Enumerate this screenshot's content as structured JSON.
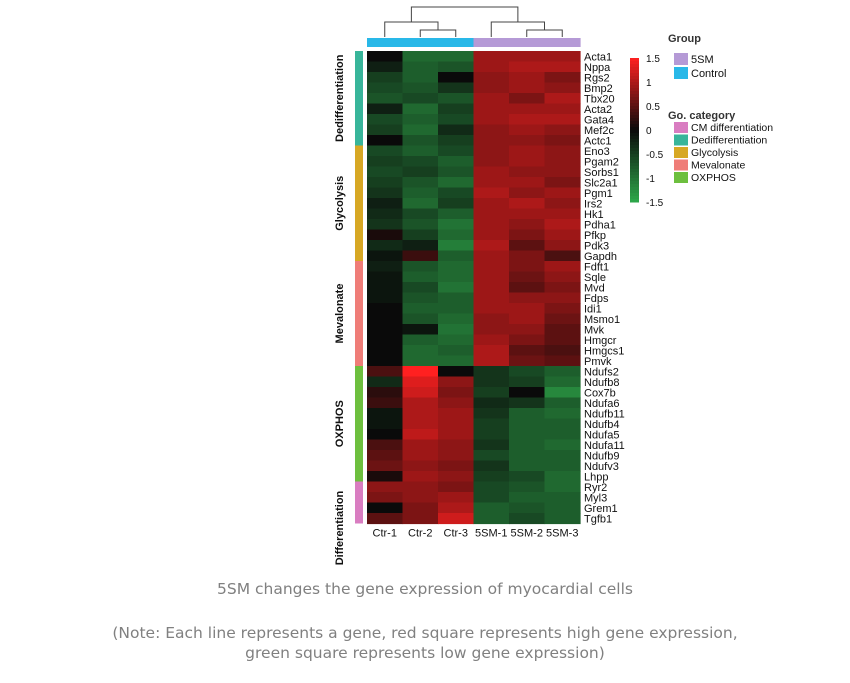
{
  "chart_data": {
    "type": "heatmap",
    "columns": [
      "Ctr-1",
      "Ctr-2",
      "Ctr-3",
      "5SM-1",
      "5SM-2",
      "5SM-3"
    ],
    "column_groups": [
      "Control",
      "Control",
      "Control",
      "5SM",
      "5SM",
      "5SM"
    ],
    "rows": [
      "Acta1",
      "Nppa",
      "Rgs2",
      "Bmp2",
      "Tbx20",
      "Acta2",
      "Gata4",
      "Mef2c",
      "Actc1",
      "Eno3",
      "Pgam2",
      "Sorbs1",
      "Slc2a1",
      "Pgm1",
      "Irs2",
      "Hk1",
      "Pdha1",
      "Pfkp",
      "Pdk3",
      "Gapdh",
      "Fdft1",
      "Sqle",
      "Mvd",
      "Fdps",
      "Idi1",
      "Msmo1",
      "Mvk",
      "Hmgcr",
      "Hmgcs1",
      "Pmvk",
      "Ndufs2",
      "Ndufb8",
      "Cox7b",
      "Ndufa6",
      "Ndufb11",
      "Ndufb4",
      "Ndufa5",
      "Ndufa11",
      "Ndufb9",
      "Ndufv3",
      "Lhpp",
      "Ryr2",
      "Myl3",
      "Grem1",
      "Tgfb1"
    ],
    "categories": [
      {
        "name": "Dedifferentiation",
        "start": 0,
        "end": 8
      },
      {
        "name": "Glycolysis",
        "start": 9,
        "end": 19
      },
      {
        "name": "Mevalonate",
        "start": 20,
        "end": 29
      },
      {
        "name": "OXPHOS",
        "start": 30,
        "end": 40
      },
      {
        "name": "Differentiation",
        "start": 41,
        "end": 44
      }
    ],
    "values": [
      [
        0.0,
        -0.9,
        -0.9,
        0.9,
        0.9,
        0.9
      ],
      [
        -0.2,
        -0.8,
        -0.7,
        0.9,
        1.0,
        1.0
      ],
      [
        -0.5,
        -0.8,
        0.0,
        0.8,
        0.9,
        0.7
      ],
      [
        -0.6,
        -0.7,
        -0.4,
        0.8,
        0.9,
        0.8
      ],
      [
        -0.7,
        -0.6,
        -0.7,
        0.9,
        0.7,
        1.0
      ],
      [
        -0.2,
        -0.9,
        -0.5,
        0.9,
        0.9,
        0.9
      ],
      [
        -0.6,
        -0.8,
        -0.6,
        0.9,
        1.0,
        1.0
      ],
      [
        -0.5,
        -0.9,
        -0.3,
        0.8,
        0.9,
        0.8
      ],
      [
        0.0,
        -0.7,
        -0.5,
        0.8,
        0.8,
        0.7
      ],
      [
        -0.6,
        -0.8,
        -0.6,
        0.8,
        0.9,
        0.8
      ],
      [
        -0.5,
        -0.6,
        -0.8,
        0.8,
        0.9,
        0.8
      ],
      [
        -0.6,
        -0.5,
        -0.7,
        0.9,
        0.8,
        0.8
      ],
      [
        -0.5,
        -0.7,
        -0.9,
        0.9,
        0.9,
        0.7
      ],
      [
        -0.4,
        -0.8,
        -0.6,
        1.0,
        0.8,
        0.9
      ],
      [
        -0.2,
        -0.9,
        -0.5,
        0.9,
        1.0,
        0.8
      ],
      [
        -0.3,
        -0.6,
        -0.8,
        0.9,
        0.9,
        0.9
      ],
      [
        -0.4,
        -0.7,
        -1.0,
        0.9,
        0.8,
        1.0
      ],
      [
        0.1,
        -0.5,
        -0.9,
        0.9,
        0.7,
        0.9
      ],
      [
        -0.3,
        -0.2,
        -1.1,
        1.0,
        0.5,
        0.8
      ],
      [
        -0.1,
        0.3,
        -0.8,
        0.9,
        0.7,
        0.4
      ],
      [
        -0.2,
        -0.7,
        -0.9,
        0.9,
        0.7,
        0.9
      ],
      [
        -0.1,
        -0.8,
        -0.9,
        0.9,
        0.6,
        0.8
      ],
      [
        -0.1,
        -0.6,
        -1.0,
        0.9,
        0.5,
        0.7
      ],
      [
        -0.1,
        -0.7,
        -0.8,
        0.9,
        0.8,
        0.8
      ],
      [
        0.0,
        -0.8,
        -0.8,
        0.9,
        0.9,
        0.7
      ],
      [
        0.0,
        -0.7,
        -0.9,
        0.8,
        0.9,
        0.6
      ],
      [
        0.0,
        -0.1,
        -1.0,
        0.8,
        0.8,
        0.5
      ],
      [
        0.0,
        -0.8,
        -0.9,
        0.9,
        0.7,
        0.5
      ],
      [
        0.0,
        -0.9,
        -0.8,
        1.0,
        0.5,
        0.4
      ],
      [
        0.0,
        -0.9,
        -0.9,
        1.0,
        0.6,
        0.5
      ],
      [
        0.4,
        1.5,
        0.0,
        -0.4,
        -0.6,
        -0.8
      ],
      [
        -0.3,
        1.3,
        0.8,
        -0.4,
        -0.5,
        -0.9
      ],
      [
        0.2,
        1.2,
        0.7,
        -0.5,
        0.0,
        -1.2
      ],
      [
        0.3,
        1.0,
        0.8,
        -0.3,
        -0.4,
        -0.8
      ],
      [
        -0.1,
        1.0,
        0.9,
        -0.4,
        -0.8,
        -0.9
      ],
      [
        -0.1,
        1.0,
        0.9,
        -0.5,
        -0.8,
        -0.8
      ],
      [
        0.0,
        1.1,
        0.9,
        -0.5,
        -0.8,
        -0.8
      ],
      [
        0.4,
        0.9,
        0.8,
        -0.4,
        -0.8,
        -0.9
      ],
      [
        0.5,
        0.9,
        0.8,
        -0.6,
        -0.8,
        -0.8
      ],
      [
        0.6,
        0.8,
        0.7,
        -0.4,
        -0.8,
        -0.8
      ],
      [
        0.1,
        0.9,
        0.8,
        -0.5,
        -0.6,
        -0.9
      ],
      [
        0.8,
        0.8,
        0.7,
        -0.6,
        -0.7,
        -0.9
      ],
      [
        0.7,
        0.8,
        0.9,
        -0.6,
        -0.8,
        -0.8
      ],
      [
        0.0,
        0.7,
        1.0,
        -0.8,
        -0.7,
        -0.8
      ],
      [
        0.5,
        0.7,
        1.2,
        -0.8,
        -0.6,
        -0.8
      ]
    ],
    "colorscale": {
      "min": -1.5,
      "max": 1.5,
      "low_color": "#2ea84a",
      "mid_color": "#0a0a0a",
      "high_color": "#ff2020",
      "ticks": [
        "1.5",
        "1",
        "0.5",
        "0",
        "-0.5",
        "-1",
        "-1.5"
      ]
    },
    "dendrogram": "columns clustered: (Ctr-1, (Ctr-2, Ctr-3)) and (5SM-1, (5SM-2, 5SM-3))",
    "legend": {
      "group_title": "Group",
      "groups": [
        {
          "name": "5SM",
          "color": "#b59ad6"
        },
        {
          "name": "Control",
          "color": "#29b8e8"
        }
      ],
      "category_title": "Go. category",
      "category_items": [
        {
          "name": "CM differentiation",
          "color": "#d97dc1"
        },
        {
          "name": "Dedifferentiation",
          "color": "#38b59a"
        },
        {
          "name": "Glycolysis",
          "color": "#d7a824"
        },
        {
          "name": "Mevalonate",
          "color": "#ef7d78"
        },
        {
          "name": "OXPHOS",
          "color": "#6dbf3e"
        }
      ],
      "placement": "right"
    }
  },
  "caption": {
    "title": "5SM changes the gene expression of myocardial cells",
    "note_line1": "(Note: Each line represents a gene, red square represents high gene expression,",
    "note_line2": "green square represents low gene expression)"
  }
}
